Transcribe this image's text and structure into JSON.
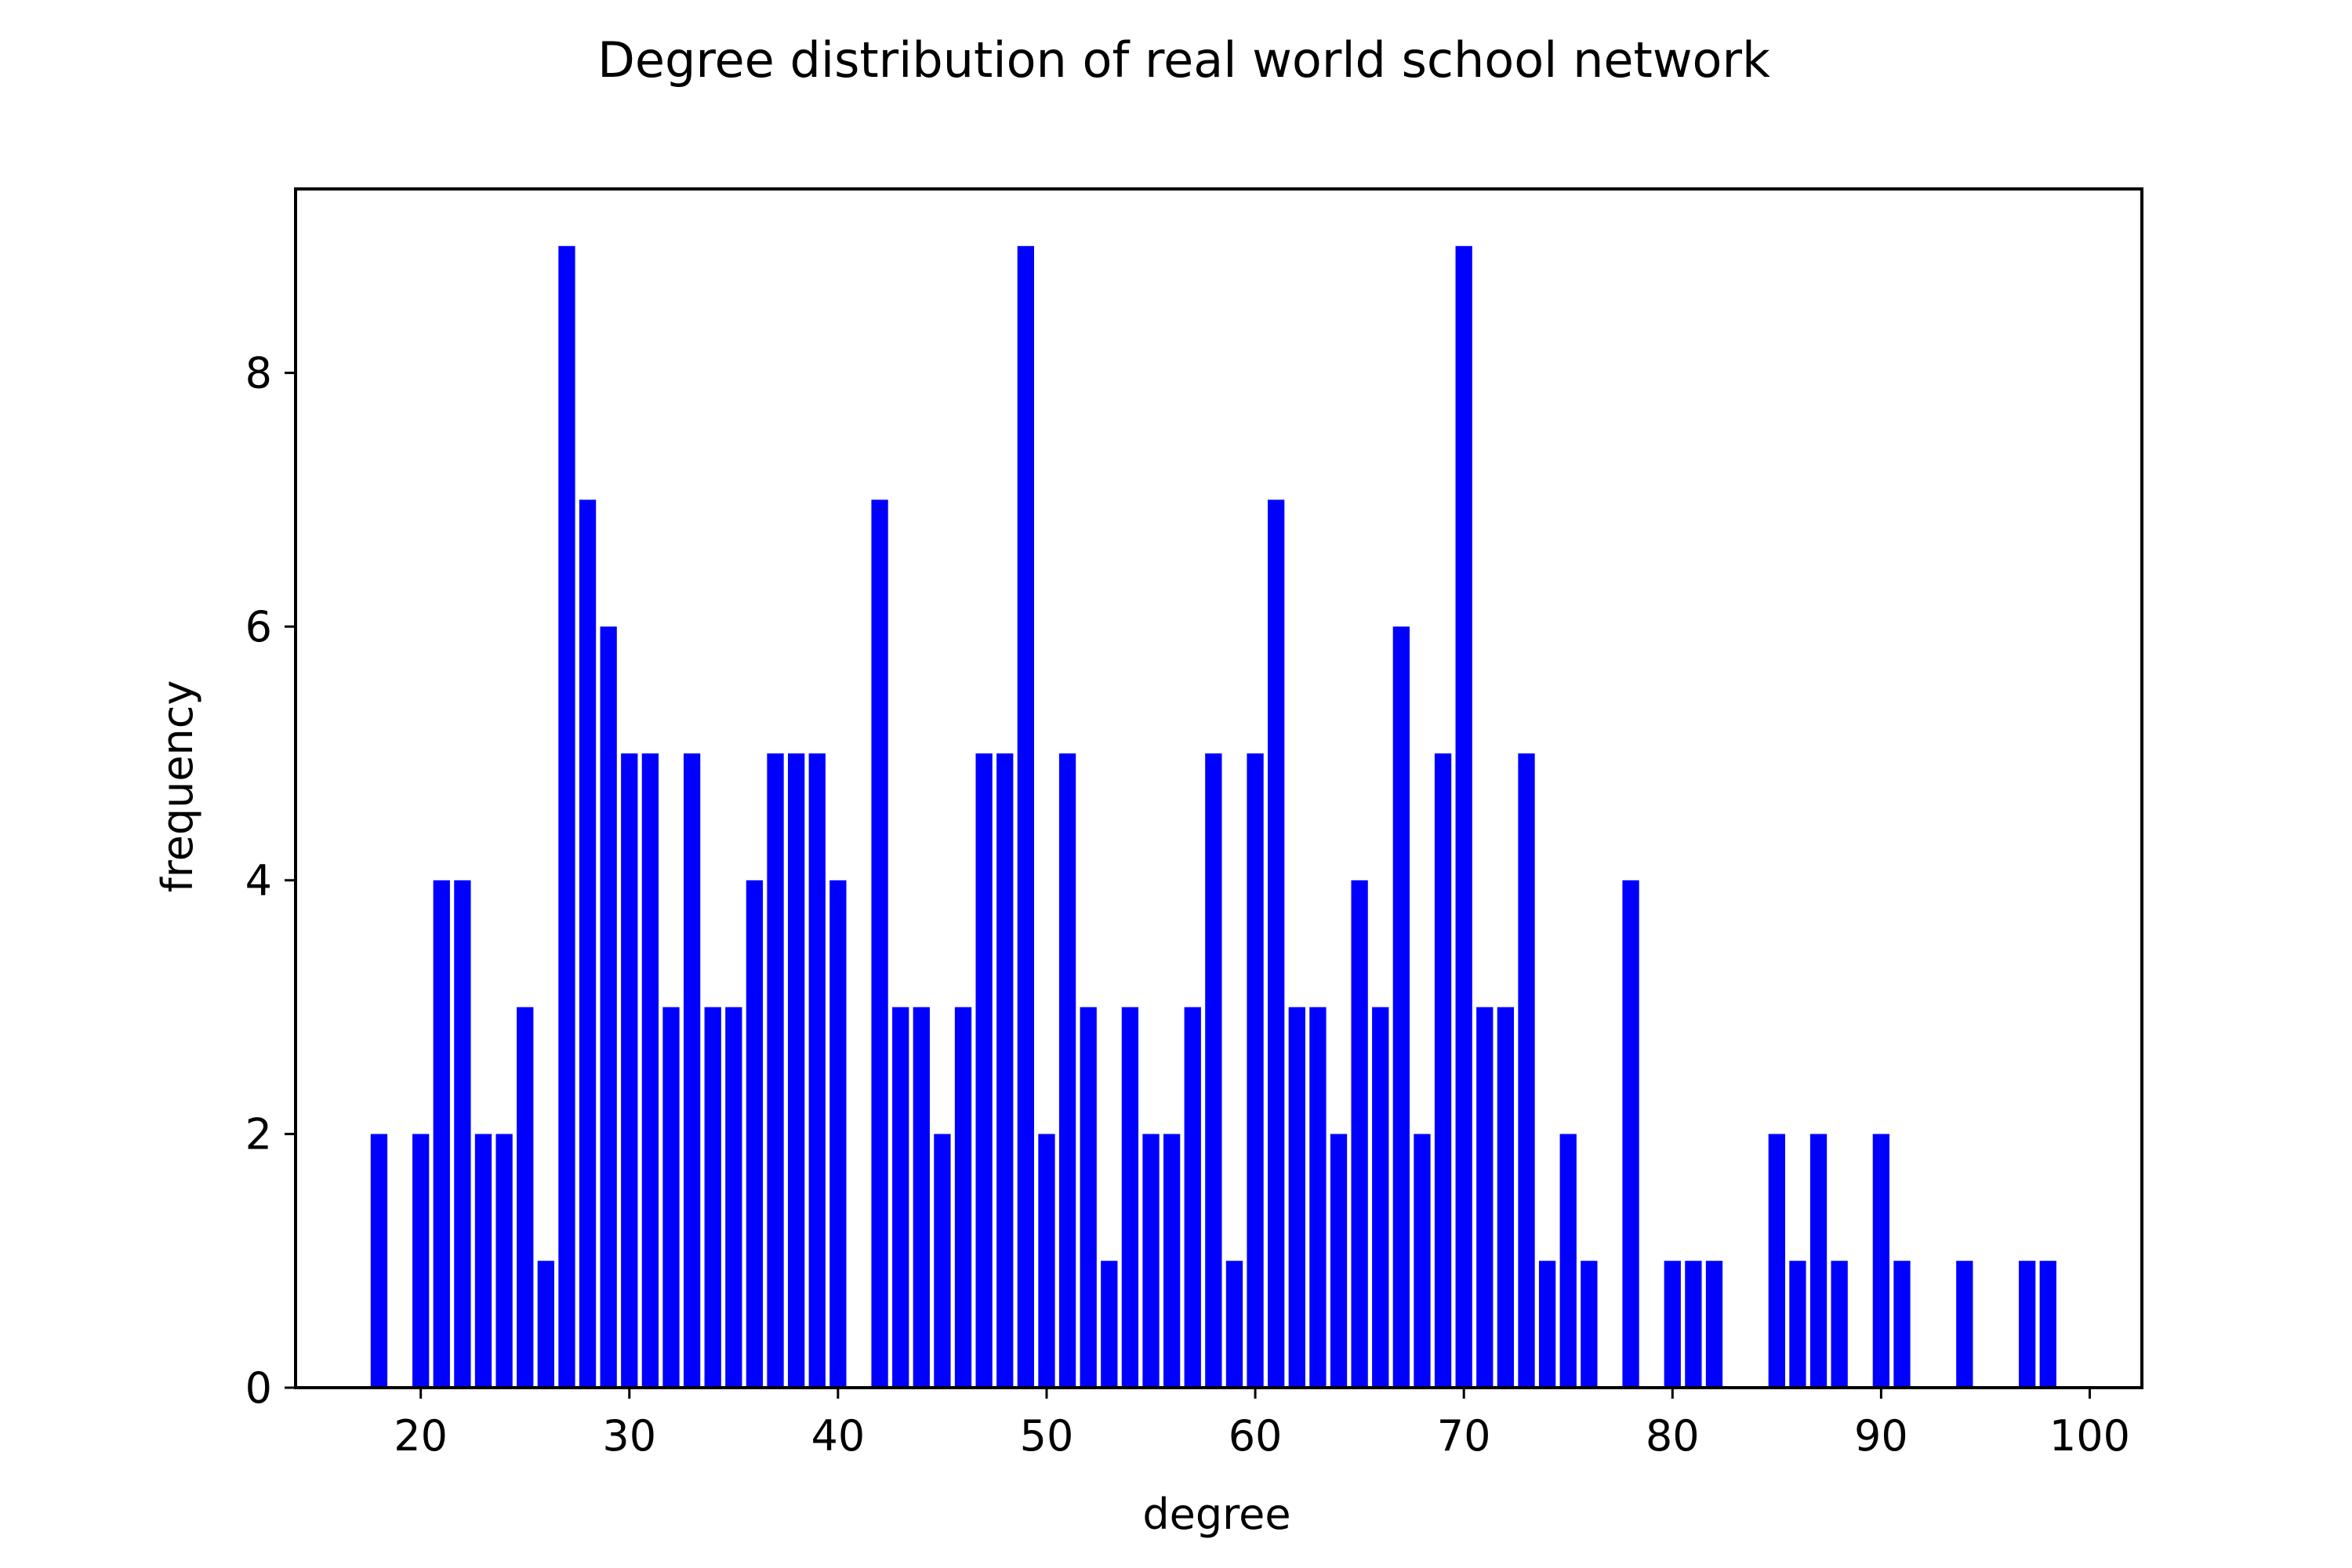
{
  "chart_data": {
    "type": "bar",
    "title": "Degree distribution of real world school network",
    "xlabel": "degree",
    "ylabel": "frequency",
    "xlim": [
      14,
      102.5
    ],
    "ylim": [
      0,
      9.45
    ],
    "xticks": [
      20,
      30,
      40,
      50,
      60,
      70,
      80,
      90,
      100
    ],
    "yticks": [
      0,
      2,
      4,
      6,
      8
    ],
    "bar_color": "#0000ff",
    "grid": false,
    "legend": "none",
    "x": [
      18,
      20,
      21,
      22,
      23,
      24,
      25,
      26,
      27,
      28,
      29,
      30,
      31,
      32,
      33,
      34,
      35,
      36,
      37,
      38,
      39,
      40,
      42,
      43,
      44,
      45,
      46,
      47,
      48,
      49,
      50,
      51,
      52,
      53,
      54,
      55,
      56,
      57,
      58,
      59,
      60,
      61,
      62,
      63,
      64,
      65,
      66,
      67,
      68,
      69,
      70,
      71,
      72,
      73,
      74,
      75,
      76,
      78,
      80,
      81,
      82,
      85,
      86,
      87,
      88,
      90,
      91,
      94,
      97,
      98
    ],
    "values": [
      2,
      2,
      4,
      4,
      2,
      2,
      3,
      1,
      9,
      7,
      6,
      5,
      5,
      3,
      5,
      3,
      3,
      4,
      5,
      5,
      5,
      4,
      7,
      3,
      3,
      2,
      3,
      5,
      5,
      9,
      2,
      5,
      3,
      1,
      3,
      2,
      2,
      3,
      5,
      1,
      5,
      7,
      3,
      3,
      2,
      4,
      3,
      6,
      2,
      5,
      9,
      3,
      3,
      5,
      1,
      2,
      1,
      4,
      1,
      1,
      1,
      2,
      1,
      2,
      1,
      2,
      1,
      1,
      1,
      1
    ]
  }
}
